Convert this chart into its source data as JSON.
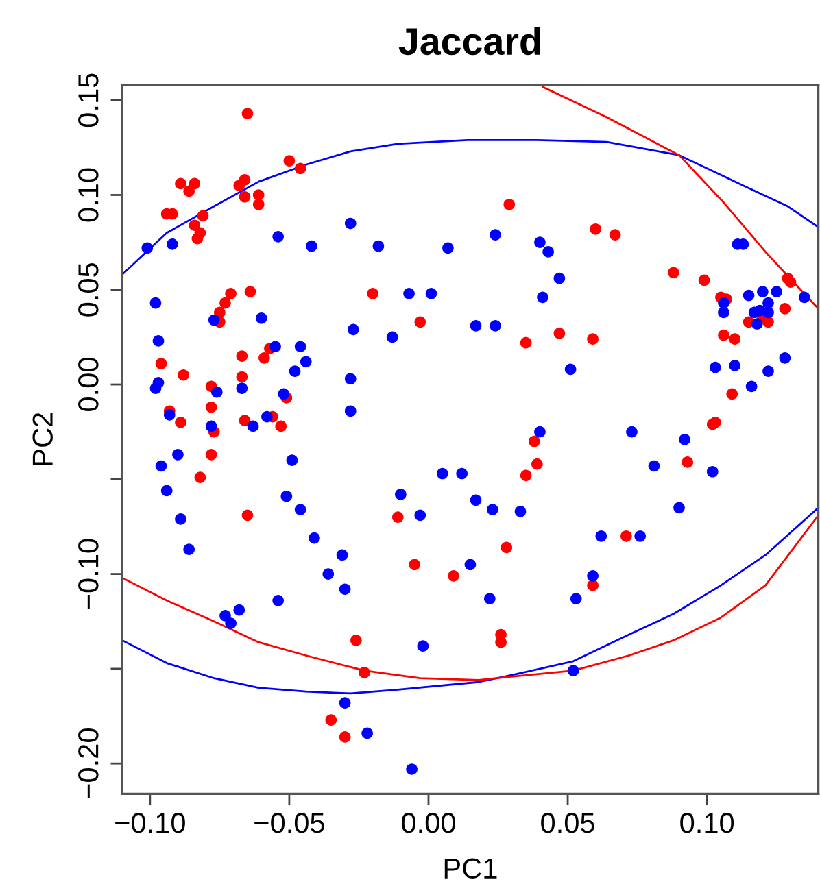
{
  "chart_data": {
    "type": "scatter",
    "title": "Jaccard",
    "xlabel": "PC1",
    "ylabel": "PC2",
    "xlim": [
      -0.11,
      0.14
    ],
    "ylim": [
      -0.216,
      0.158
    ],
    "xticks": [
      {
        "value": -0.1,
        "label": "−0.10"
      },
      {
        "value": -0.05,
        "label": "−0.05"
      },
      {
        "value": 0.0,
        "label": "0.00"
      },
      {
        "value": 0.05,
        "label": "0.05"
      },
      {
        "value": 0.1,
        "label": "0.10"
      }
    ],
    "yticks": [
      {
        "value": -0.2,
        "label": "−0.20"
      },
      {
        "value": -0.15,
        "label": null
      },
      {
        "value": -0.1,
        "label": "−0.10"
      },
      {
        "value": -0.05,
        "label": null
      },
      {
        "value": 0.0,
        "label": "0.00"
      },
      {
        "value": 0.05,
        "label": "0.05"
      },
      {
        "value": 0.1,
        "label": "0.10"
      },
      {
        "value": 0.15,
        "label": "0.15"
      }
    ],
    "grid": false,
    "marker": "circle",
    "series": [
      {
        "color": "#ff0000",
        "x": [
          -0.065,
          -0.05,
          -0.046,
          -0.089,
          -0.086,
          -0.084,
          -0.068,
          -0.066,
          -0.066,
          -0.061,
          -0.061,
          -0.094,
          -0.092,
          -0.081,
          -0.084,
          -0.082,
          -0.083,
          -0.064,
          -0.071,
          -0.073,
          -0.075,
          -0.075,
          -0.02,
          -0.003,
          -0.096,
          -0.088,
          -0.067,
          -0.059,
          -0.057,
          -0.067,
          -0.078,
          -0.051,
          -0.078,
          -0.093,
          -0.089,
          -0.066,
          -0.056,
          -0.053,
          -0.077,
          -0.078,
          -0.082,
          -0.065,
          -0.011,
          -0.005,
          0.009,
          -0.026,
          -0.023,
          -0.035,
          -0.03,
          0.029,
          0.06,
          0.067,
          0.088,
          0.099,
          0.105,
          0.107,
          0.129,
          0.13,
          0.128,
          0.115,
          0.12,
          0.122,
          0.106,
          0.11,
          0.035,
          0.047,
          0.059,
          0.109,
          0.102,
          0.103,
          0.038,
          0.039,
          0.035,
          0.093,
          0.028,
          0.071,
          0.059,
          0.026,
          0.026
        ],
        "values": [
          0.143,
          0.118,
          0.114,
          0.106,
          0.102,
          0.106,
          0.105,
          0.108,
          0.099,
          0.1,
          0.095,
          0.09,
          0.09,
          0.089,
          0.084,
          0.08,
          0.077,
          0.049,
          0.048,
          0.043,
          0.038,
          0.033,
          0.048,
          0.033,
          0.011,
          0.005,
          0.015,
          0.014,
          0.019,
          0.004,
          -0.001,
          -0.007,
          -0.012,
          -0.014,
          -0.02,
          -0.019,
          -0.017,
          -0.022,
          -0.025,
          -0.037,
          -0.049,
          -0.069,
          -0.07,
          -0.095,
          -0.101,
          -0.135,
          -0.152,
          -0.177,
          -0.186,
          0.095,
          0.082,
          0.079,
          0.059,
          0.055,
          0.046,
          0.045,
          0.056,
          0.054,
          0.04,
          0.033,
          0.035,
          0.033,
          0.026,
          0.024,
          0.022,
          0.027,
          0.024,
          -0.005,
          -0.021,
          -0.02,
          -0.03,
          -0.042,
          -0.048,
          -0.041,
          -0.086,
          -0.08,
          -0.106,
          -0.132,
          -0.136
        ]
      },
      {
        "color": "#0000ff",
        "x": [
          -0.101,
          -0.092,
          -0.054,
          -0.042,
          -0.028,
          -0.018,
          0.007,
          -0.098,
          -0.077,
          -0.06,
          -0.027,
          -0.013,
          -0.007,
          0.001,
          0.017,
          -0.097,
          -0.055,
          -0.046,
          -0.044,
          -0.048,
          -0.028,
          -0.097,
          -0.098,
          -0.076,
          -0.067,
          -0.052,
          -0.028,
          -0.093,
          -0.078,
          -0.063,
          -0.058,
          -0.09,
          -0.096,
          -0.094,
          -0.089,
          -0.086,
          -0.049,
          -0.051,
          -0.046,
          -0.041,
          -0.031,
          -0.036,
          -0.03,
          -0.054,
          -0.068,
          -0.073,
          -0.071,
          -0.01,
          -0.003,
          0.005,
          0.012,
          0.017,
          0.015,
          -0.002,
          -0.03,
          -0.022,
          -0.006,
          0.024,
          0.04,
          0.043,
          0.047,
          0.041,
          0.024,
          0.051,
          0.111,
          0.113,
          0.115,
          0.12,
          0.125,
          0.135,
          0.122,
          0.106,
          0.106,
          0.117,
          0.119,
          0.122,
          0.118,
          0.103,
          0.11,
          0.122,
          0.128,
          0.116,
          0.04,
          0.073,
          0.092,
          0.081,
          0.102,
          0.023,
          0.033,
          0.09,
          0.062,
          0.076,
          0.022,
          0.053,
          0.059,
          0.052
        ],
        "values": [
          0.072,
          0.074,
          0.078,
          0.073,
          0.085,
          0.073,
          0.072,
          0.043,
          0.034,
          0.035,
          0.029,
          0.025,
          0.048,
          0.048,
          0.031,
          0.023,
          0.02,
          0.02,
          0.012,
          0.007,
          0.003,
          0.001,
          -0.002,
          -0.004,
          -0.002,
          -0.005,
          -0.014,
          -0.016,
          -0.022,
          -0.022,
          -0.017,
          -0.037,
          -0.043,
          -0.056,
          -0.071,
          -0.087,
          -0.04,
          -0.059,
          -0.066,
          -0.081,
          -0.09,
          -0.1,
          -0.108,
          -0.114,
          -0.119,
          -0.122,
          -0.126,
          -0.058,
          -0.069,
          -0.047,
          -0.047,
          -0.061,
          -0.095,
          -0.138,
          -0.168,
          -0.184,
          -0.203,
          0.079,
          0.075,
          0.07,
          0.056,
          0.046,
          0.031,
          0.008,
          0.074,
          0.074,
          0.047,
          0.049,
          0.049,
          0.046,
          0.043,
          0.043,
          0.038,
          0.038,
          0.039,
          0.038,
          0.032,
          0.009,
          0.01,
          0.007,
          0.014,
          -0.001,
          -0.025,
          -0.025,
          -0.029,
          -0.043,
          -0.046,
          -0.066,
          -0.067,
          -0.065,
          -0.08,
          -0.08,
          -0.113,
          -0.113,
          -0.101,
          -0.151
        ]
      },
      {
        "type": "line",
        "marker": "none",
        "color": "#0000ff",
        "x": [
          -0.11,
          -0.094,
          -0.077,
          -0.061,
          -0.044,
          -0.028,
          -0.011,
          0.014,
          0.039,
          0.064,
          0.09,
          0.113,
          0.129,
          0.14
        ],
        "values": [
          0.058,
          0.08,
          0.094,
          0.107,
          0.116,
          0.123,
          0.127,
          0.129,
          0.129,
          0.128,
          0.121,
          0.105,
          0.094,
          0.083
        ]
      },
      {
        "type": "line",
        "marker": "none",
        "color": "#0000ff",
        "x": [
          -0.11,
          -0.094,
          -0.077,
          -0.061,
          -0.044,
          -0.028,
          -0.011,
          0.018,
          0.031,
          0.052,
          0.072,
          0.088,
          0.105,
          0.121,
          0.14
        ],
        "values": [
          -0.135,
          -0.147,
          -0.155,
          -0.16,
          -0.162,
          -0.163,
          -0.161,
          -0.157,
          -0.153,
          -0.146,
          -0.132,
          -0.121,
          -0.106,
          -0.09,
          -0.065
        ]
      },
      {
        "type": "line",
        "marker": "none",
        "color": "#ff0000",
        "x": [
          0.041,
          0.064,
          0.09,
          0.106,
          0.121,
          0.133,
          0.14
        ],
        "values": [
          0.157,
          0.141,
          0.121,
          0.096,
          0.07,
          0.051,
          0.04
        ]
      },
      {
        "type": "line",
        "marker": "none",
        "color": "#ff0000",
        "x": [
          -0.11,
          -0.094,
          -0.077,
          -0.061,
          -0.044,
          -0.023,
          -0.003,
          0.018,
          0.031,
          0.052,
          0.072,
          0.088,
          0.105,
          0.121,
          0.14
        ],
        "values": [
          -0.102,
          -0.114,
          -0.125,
          -0.136,
          -0.143,
          -0.151,
          -0.155,
          -0.156,
          -0.154,
          -0.151,
          -0.143,
          -0.135,
          -0.123,
          -0.106,
          -0.069
        ]
      }
    ]
  }
}
